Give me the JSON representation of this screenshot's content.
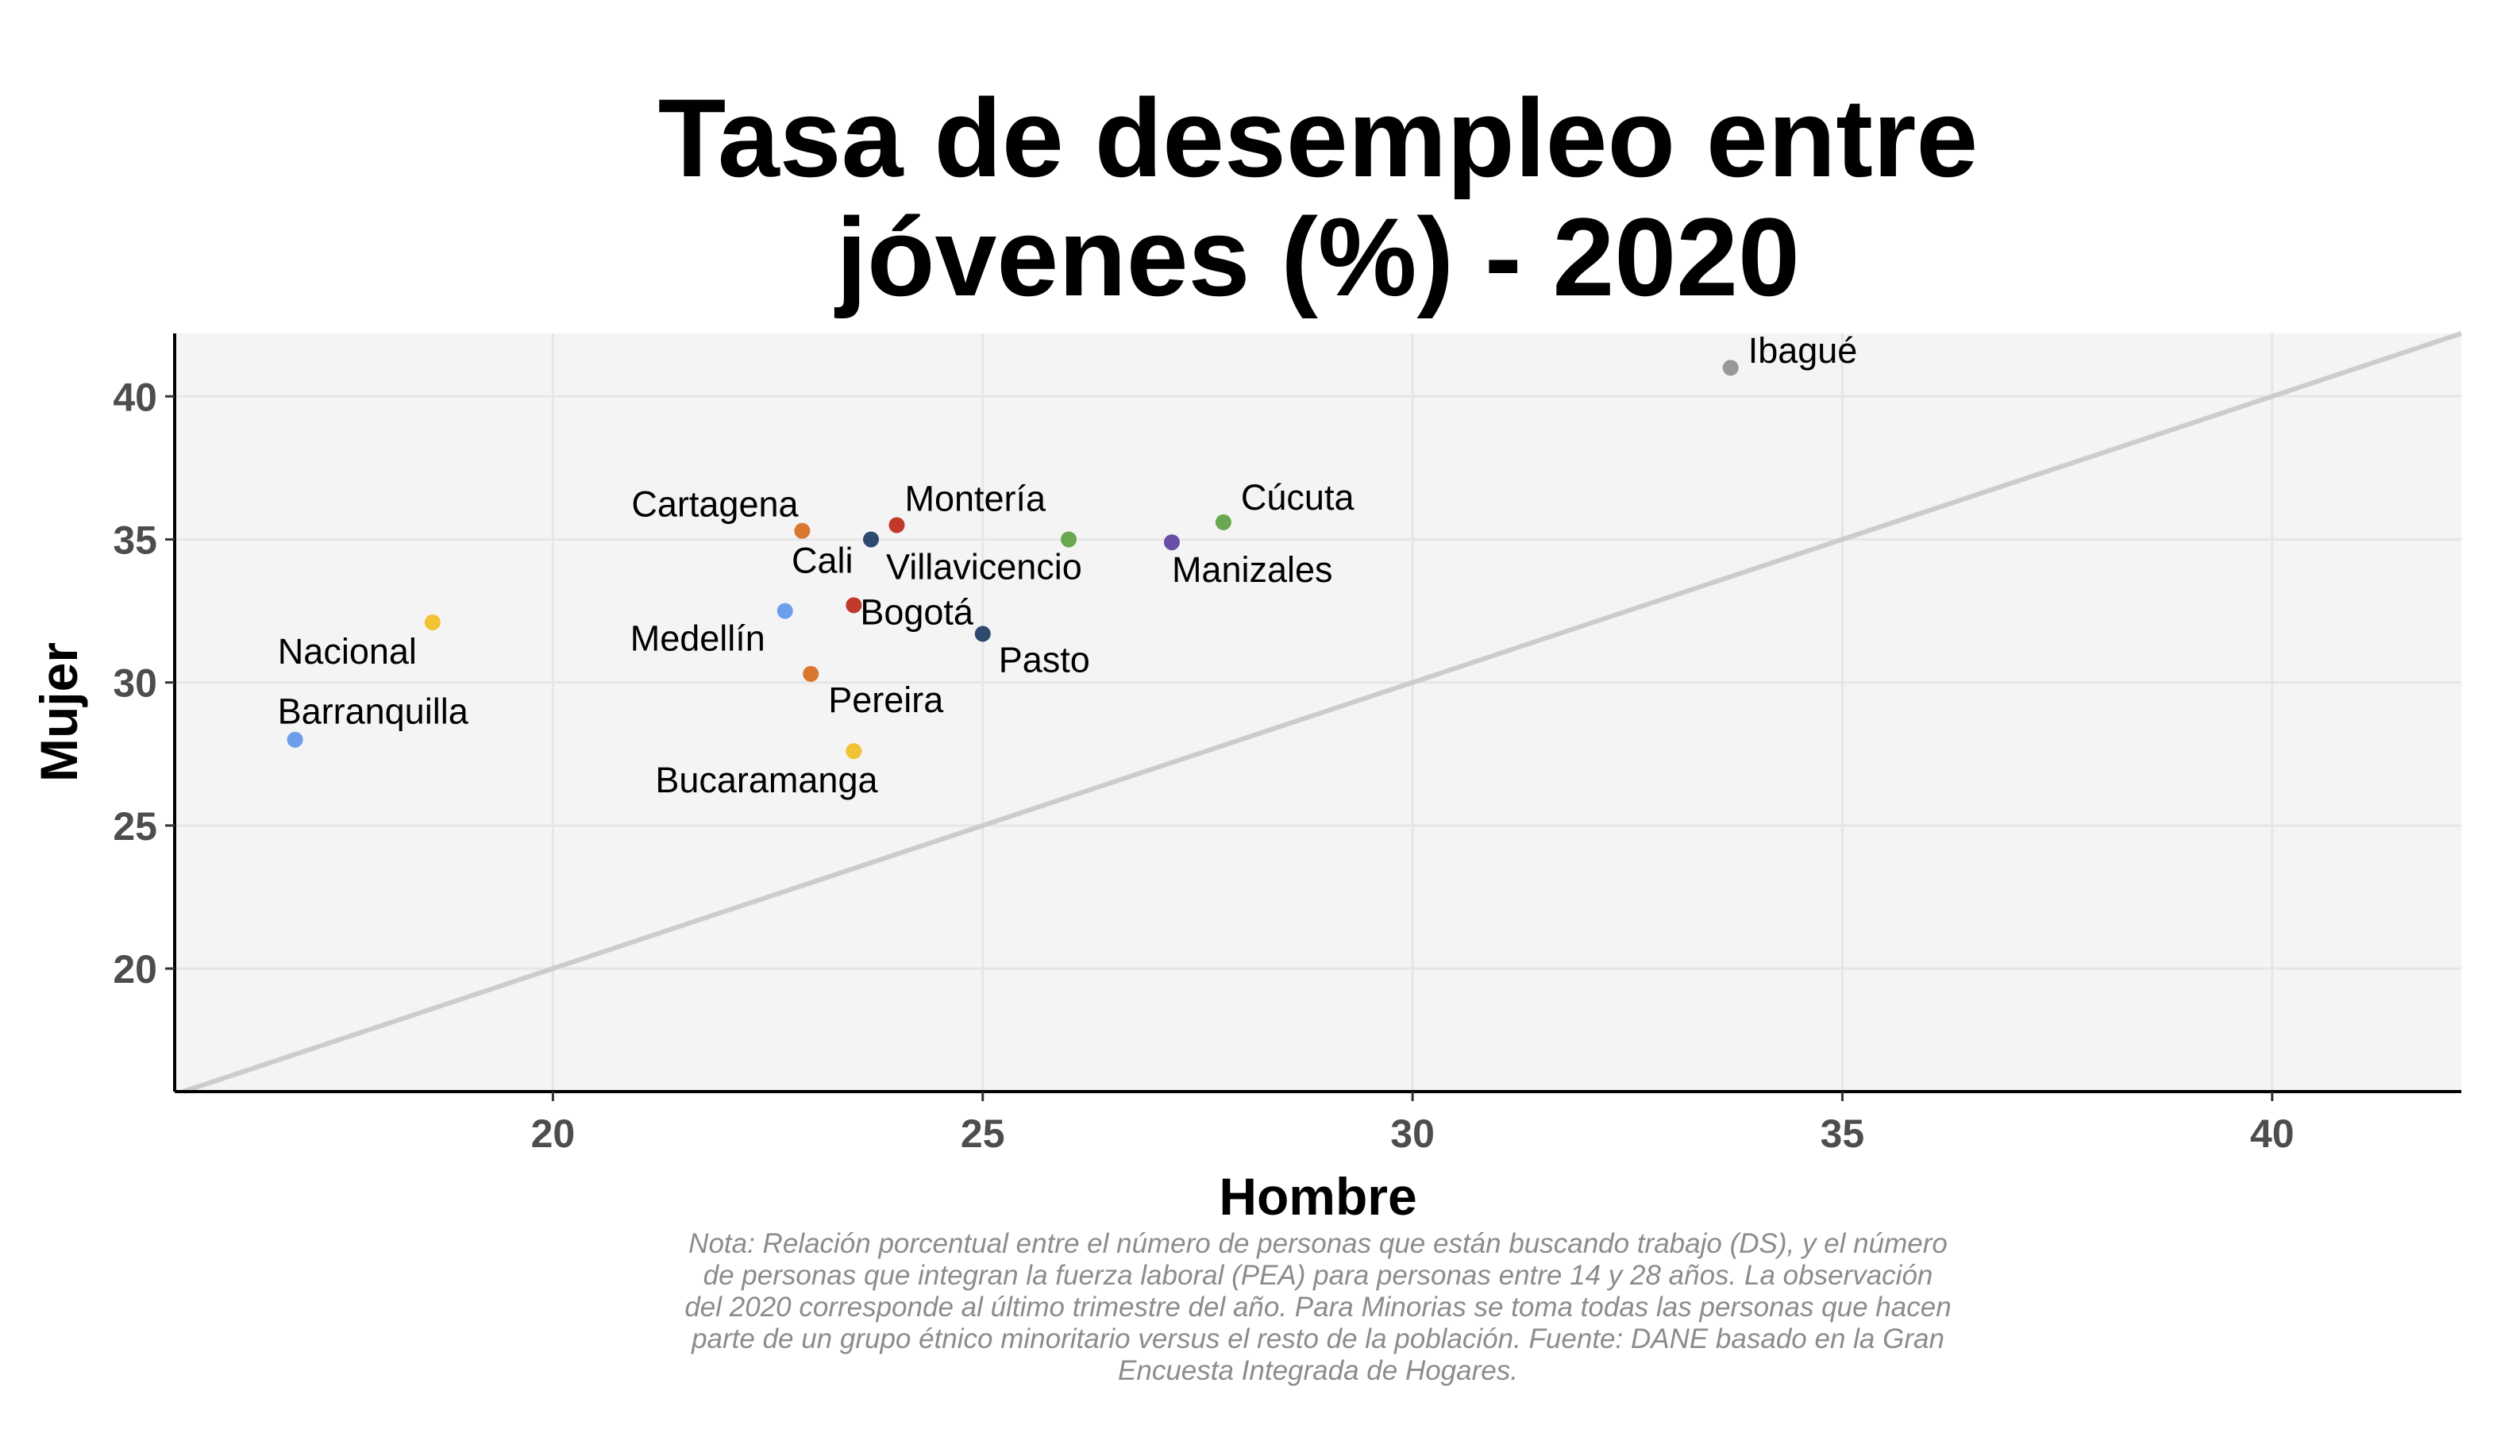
{
  "chart_data": {
    "type": "scatter",
    "title_lines": [
      "Tasa de desempleo entre",
      "jóvenes (%) - 2020"
    ],
    "xlabel": "Hombre",
    "ylabel": "Mujer",
    "xlim": [
      15.6,
      42.2
    ],
    "ylim": [
      15.7,
      42.2
    ],
    "xticks": [
      20,
      25,
      30,
      35,
      40
    ],
    "yticks": [
      20,
      25,
      30,
      35,
      40
    ],
    "grid": true,
    "reference_line": "y = x",
    "points": [
      {
        "label": "Ibagué",
        "x": 33.7,
        "y": 41.0,
        "color": "#999999"
      },
      {
        "label": "Cúcuta",
        "x": 27.8,
        "y": 35.6,
        "color": "#6aa84f"
      },
      {
        "label": "Villavicencio",
        "x": 26.0,
        "y": 35.0,
        "color": "#6aa84f"
      },
      {
        "label": "Manizales",
        "x": 27.2,
        "y": 34.9,
        "color": "#674ea7"
      },
      {
        "label": "Montería",
        "x": 24.0,
        "y": 35.5,
        "color": "#c0392b"
      },
      {
        "label": "Cali",
        "x": 23.7,
        "y": 35.0,
        "color": "#2e4a6e"
      },
      {
        "label": "Cartagena",
        "x": 22.9,
        "y": 35.3,
        "color": "#d9772f"
      },
      {
        "label": "Bogotá",
        "x": 23.5,
        "y": 32.7,
        "color": "#c0392b"
      },
      {
        "label": "Pasto",
        "x": 25.0,
        "y": 31.7,
        "color": "#2e4a6e"
      },
      {
        "label": "Medellín",
        "x": 22.7,
        "y": 32.5,
        "color": "#6d9eeb"
      },
      {
        "label": "Nacional",
        "x": 18.6,
        "y": 32.1,
        "color": "#f1c232"
      },
      {
        "label": "Pereira",
        "x": 23.0,
        "y": 30.3,
        "color": "#d9772f"
      },
      {
        "label": "Barranquilla",
        "x": 17.0,
        "y": 28.0,
        "color": "#6d9eeb"
      },
      {
        "label": "Bucaramanga",
        "x": 23.5,
        "y": 27.6,
        "color": "#f1c232"
      }
    ],
    "note_lines": [
      "Nota: Relación porcentual entre el número de personas que están buscando trabajo (DS), y el número",
      "de personas que integran la fuerza laboral (PEA) para personas entre 14 y 28 años. La observación",
      "del 2020 corresponde al último trimestre del año. Para Minorias se toma todas las personas que hacen",
      "parte de un grupo étnico minoritario versus el resto de la población. Fuente: DANE basado en la Gran",
      "Encuesta Integrada de Hogares."
    ]
  }
}
